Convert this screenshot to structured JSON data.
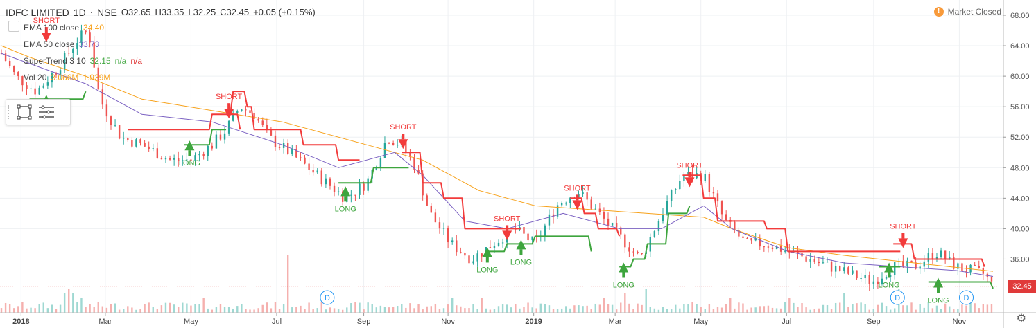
{
  "header": {
    "symbol": "IDFC LIMITED",
    "interval": "1D",
    "exchange": "NSE",
    "open": "O32.65",
    "high": "H33.35",
    "low": "L32.25",
    "close": "C32.45",
    "change": "+0.05 (+0.15%)"
  },
  "legend": [
    {
      "name": "EMA 100 close",
      "value": "34.40",
      "color": "#f7a21b"
    },
    {
      "name": "EMA 50 close",
      "value": "33.73",
      "color": "#7b61c2"
    },
    {
      "name": "SuperTrend 3 10",
      "value": "32.15",
      "extra1": "n/a",
      "extra2": "n/a",
      "color": "#3da53d"
    },
    {
      "name": "Vol 20",
      "value": "3.066M",
      "extra1": "1.939M",
      "color": "#f7a21b"
    }
  ],
  "status": {
    "icon": "alert-icon",
    "label": "Market Closed"
  },
  "last_price": "32.45",
  "colors": {
    "up": "#26a69a",
    "down": "#ef5350",
    "st_up": "#3da53d",
    "st_down": "#f23b3b",
    "ema100": "#f7a21b",
    "ema50": "#7b61c2"
  },
  "chart_data": {
    "type": "line",
    "title": "IDFC LIMITED · 1D · NSE",
    "x_ticks": [
      "2018",
      "Mar",
      "May",
      "Jul",
      "Sep",
      "Nov",
      "2019",
      "Mar",
      "May",
      "Jul",
      "Sep",
      "Nov"
    ],
    "y_ticks": [
      "68.00",
      "64.00",
      "60.00",
      "56.00",
      "52.00",
      "48.00",
      "44.00",
      "40.00",
      "36.00"
    ],
    "ylim": [
      30,
      69
    ],
    "x_range_days": [
      0,
      706
    ],
    "close_points": [
      [
        0,
        63
      ],
      [
        10,
        60
      ],
      [
        25,
        58
      ],
      [
        40,
        61
      ],
      [
        55,
        65
      ],
      [
        62,
        66
      ],
      [
        70,
        57
      ],
      [
        85,
        52
      ],
      [
        100,
        51
      ],
      [
        120,
        49
      ],
      [
        135,
        49
      ],
      [
        150,
        51
      ],
      [
        160,
        53
      ],
      [
        170,
        56
      ],
      [
        180,
        55
      ],
      [
        190,
        52
      ],
      [
        205,
        50
      ],
      [
        225,
        47
      ],
      [
        245,
        44
      ],
      [
        260,
        46
      ],
      [
        275,
        52
      ],
      [
        285,
        51
      ],
      [
        295,
        48
      ],
      [
        305,
        42
      ],
      [
        320,
        38
      ],
      [
        335,
        36
      ],
      [
        350,
        38
      ],
      [
        365,
        40
      ],
      [
        380,
        38
      ],
      [
        395,
        43
      ],
      [
        410,
        45
      ],
      [
        425,
        42
      ],
      [
        440,
        39
      ],
      [
        455,
        36
      ],
      [
        470,
        42
      ],
      [
        485,
        47
      ],
      [
        500,
        47
      ],
      [
        515,
        41
      ],
      [
        530,
        38
      ],
      [
        545,
        38
      ],
      [
        560,
        37
      ],
      [
        575,
        36
      ],
      [
        590,
        35
      ],
      [
        605,
        34
      ],
      [
        620,
        33
      ],
      [
        635,
        35
      ],
      [
        650,
        35
      ],
      [
        665,
        37
      ],
      [
        680,
        35
      ],
      [
        700,
        34
      ],
      [
        706,
        32.45
      ]
    ],
    "ema100": [
      [
        0,
        64
      ],
      [
        20,
        62.5
      ],
      [
        60,
        60
      ],
      [
        100,
        57
      ],
      [
        150,
        55.5
      ],
      [
        200,
        54
      ],
      [
        260,
        51
      ],
      [
        300,
        49
      ],
      [
        340,
        45
      ],
      [
        380,
        43
      ],
      [
        420,
        42.5
      ],
      [
        460,
        42
      ],
      [
        500,
        41.5
      ],
      [
        520,
        40
      ],
      [
        560,
        37.5
      ],
      [
        600,
        36.5
      ],
      [
        650,
        35.5
      ],
      [
        706,
        34.4
      ]
    ],
    "ema50": [
      [
        0,
        63
      ],
      [
        30,
        61
      ],
      [
        60,
        59
      ],
      [
        100,
        55
      ],
      [
        150,
        54
      ],
      [
        200,
        51
      ],
      [
        240,
        48
      ],
      [
        280,
        50
      ],
      [
        300,
        47
      ],
      [
        330,
        41
      ],
      [
        360,
        40
      ],
      [
        400,
        42
      ],
      [
        440,
        40
      ],
      [
        470,
        40
      ],
      [
        500,
        43
      ],
      [
        520,
        40
      ],
      [
        560,
        37
      ],
      [
        600,
        35.5
      ],
      [
        640,
        35
      ],
      [
        680,
        34.5
      ],
      [
        706,
        33.73
      ]
    ],
    "supertrend": [
      {
        "dir": "long",
        "points": [
          [
            20,
            57
          ],
          [
            50,
            57
          ],
          [
            60,
            58
          ]
        ]
      },
      {
        "dir": "short",
        "points": [
          [
            90,
            53
          ],
          [
            120,
            53
          ],
          [
            150,
            55
          ],
          [
            170,
            53
          ]
        ]
      },
      {
        "dir": "long",
        "points": [
          [
            130,
            51
          ],
          [
            145,
            51
          ],
          [
            150,
            53
          ],
          [
            160,
            53
          ]
        ]
      },
      {
        "dir": "short",
        "points": [
          [
            160,
            55
          ],
          [
            165,
            58
          ],
          [
            175,
            56
          ],
          [
            180,
            53
          ],
          [
            200,
            53
          ],
          [
            215,
            51
          ],
          [
            240,
            49
          ],
          [
            255,
            49
          ]
        ]
      },
      {
        "dir": "long",
        "points": [
          [
            240,
            46
          ],
          [
            255,
            46
          ],
          [
            265,
            48
          ],
          [
            290,
            48
          ]
        ]
      },
      {
        "dir": "short",
        "points": [
          [
            285,
            50
          ],
          [
            300,
            46
          ],
          [
            315,
            44
          ],
          [
            330,
            40
          ],
          [
            370,
            40
          ]
        ]
      },
      {
        "dir": "long",
        "points": [
          [
            345,
            37
          ],
          [
            355,
            37
          ],
          [
            360,
            38
          ],
          [
            375,
            38
          ],
          [
            380,
            39
          ],
          [
            410,
            39
          ],
          [
            420,
            37
          ]
        ]
      },
      {
        "dir": "short",
        "points": [
          [
            405,
            44
          ],
          [
            415,
            42
          ],
          [
            425,
            40
          ],
          [
            440,
            39
          ]
        ]
      },
      {
        "dir": "long",
        "points": [
          [
            440,
            35
          ],
          [
            450,
            36
          ],
          [
            460,
            38
          ],
          [
            475,
            42
          ],
          [
            490,
            43
          ]
        ]
      },
      {
        "dir": "short",
        "points": [
          [
            485,
            47
          ],
          [
            500,
            44
          ],
          [
            510,
            41
          ],
          [
            525,
            41
          ],
          [
            545,
            40
          ],
          [
            560,
            37
          ],
          [
            610,
            37
          ],
          [
            640,
            37
          ]
        ]
      },
      {
        "dir": "long",
        "points": [
          [
            625,
            35
          ],
          [
            640,
            35
          ]
        ]
      },
      {
        "dir": "short",
        "points": [
          [
            635,
            38
          ],
          [
            650,
            36
          ],
          [
            700,
            35
          ]
        ]
      },
      {
        "dir": "long",
        "points": [
          [
            660,
            33
          ],
          [
            700,
            33
          ],
          [
            706,
            32.15
          ]
        ]
      }
    ],
    "signals": [
      {
        "label": "LONG",
        "dir": "long",
        "x": 32,
        "y": 57
      },
      {
        "label": "SHORT",
        "dir": "short",
        "x": 32,
        "y": 65
      },
      {
        "label": "LONG",
        "dir": "long",
        "x": 134,
        "y": 51
      },
      {
        "label": "SHORT",
        "dir": "short",
        "x": 162,
        "y": 55
      },
      {
        "label": "LONG",
        "dir": "long",
        "x": 245,
        "y": 45
      },
      {
        "label": "SHORT",
        "dir": "short",
        "x": 286,
        "y": 51
      },
      {
        "label": "LONG",
        "dir": "long",
        "x": 346,
        "y": 37
      },
      {
        "label": "SHORT",
        "dir": "short",
        "x": 360,
        "y": 39
      },
      {
        "label": "LONG",
        "dir": "long",
        "x": 370,
        "y": 38
      },
      {
        "label": "SHORT",
        "dir": "short",
        "x": 410,
        "y": 43
      },
      {
        "label": "LONG",
        "dir": "long",
        "x": 443,
        "y": 35
      },
      {
        "label": "SHORT",
        "dir": "short",
        "x": 490,
        "y": 46
      },
      {
        "label": "LONG",
        "dir": "long",
        "x": 632,
        "y": 35
      },
      {
        "label": "SHORT",
        "dir": "short",
        "x": 642,
        "y": 38
      },
      {
        "label": "LONG",
        "dir": "long",
        "x": 667,
        "y": 33
      }
    ],
    "dividends": [
      {
        "label": "D",
        "x": 232
      },
      {
        "label": "D",
        "x": 638
      },
      {
        "label": "D",
        "x": 687
      }
    ],
    "volume_scale_max": 15,
    "volume_spikes": [
      [
        45,
        4
      ],
      [
        48,
        5
      ],
      [
        52,
        4
      ],
      [
        58,
        3
      ],
      [
        145,
        3
      ],
      [
        205,
        12
      ],
      [
        320,
        3
      ],
      [
        342,
        3
      ],
      [
        430,
        3
      ],
      [
        445,
        4
      ],
      [
        460,
        5
      ],
      [
        520,
        3
      ],
      [
        560,
        3
      ],
      [
        600,
        4
      ],
      [
        640,
        5
      ],
      [
        690,
        3
      ]
    ]
  }
}
